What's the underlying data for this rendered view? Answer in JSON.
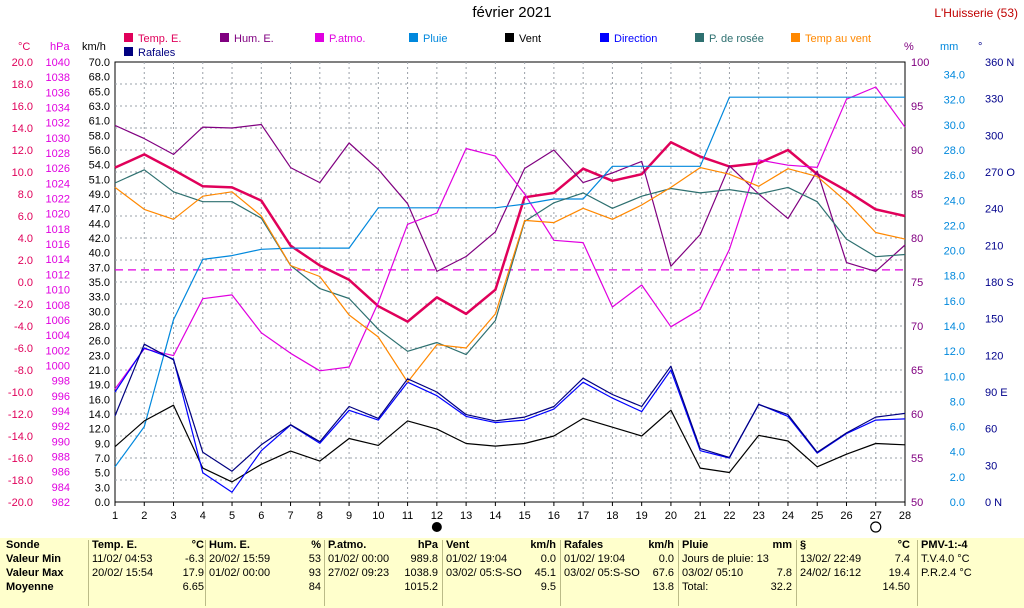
{
  "header": {
    "title": "février 2021",
    "station": "L'Huisserie (53)"
  },
  "legend": [
    {
      "label": "Temp. E.",
      "color": "#e0005a"
    },
    {
      "label": "Hum. E.",
      "color": "#800080"
    },
    {
      "label": "P.atmo.",
      "color": "#e000e0"
    },
    {
      "label": "Pluie",
      "color": "#0088dd"
    },
    {
      "label": "Vent",
      "color": "#000000"
    },
    {
      "label": "Direction",
      "color": "#0000ff"
    },
    {
      "label": "P. de rosée",
      "color": "#2e7070"
    },
    {
      "label": "Temp au vent",
      "color": "#ff8800"
    },
    {
      "label": "Rafales",
      "color": "#000080"
    }
  ],
  "axis_units": {
    "temp": "°C",
    "pressure": "hPa",
    "wind": "km/h",
    "humidity": "%",
    "rain": "mm",
    "direction": "°"
  },
  "chart_data": {
    "type": "line",
    "title": "février 2021",
    "x": [
      1,
      2,
      3,
      4,
      5,
      6,
      7,
      8,
      9,
      10,
      11,
      12,
      13,
      14,
      15,
      16,
      17,
      18,
      19,
      20,
      21,
      22,
      23,
      24,
      25,
      26,
      27,
      28
    ],
    "xlim": [
      1,
      28
    ],
    "axes": {
      "temp": {
        "range": [
          -20,
          20
        ],
        "ticks": [
          "20.0",
          "18.0",
          "16.0",
          "14.0",
          "12.0",
          "10.0",
          "8.0",
          "6.0",
          "4.0",
          "2.0",
          "0.0",
          "-2.0",
          "-4.0",
          "-6.0",
          "-8.0",
          "-10.0",
          "-12.0",
          "-14.0",
          "-16.0",
          "-18.0",
          "-20.0"
        ]
      },
      "pressure": {
        "range": [
          982,
          1040
        ],
        "ticks": [
          "1040",
          "1038",
          "1036",
          "1034",
          "1032",
          "1030",
          "1028",
          "1026",
          "1024",
          "1022",
          "1020",
          "1018",
          "1016",
          "1014",
          "1012",
          "1010",
          "1008",
          "1006",
          "1004",
          "1002",
          "1000",
          "998",
          "996",
          "994",
          "992",
          "990",
          "988",
          "986",
          "984",
          "982"
        ]
      },
      "wind": {
        "range": [
          0,
          70
        ],
        "ticks": [
          "70.0",
          "68.0",
          "65.0",
          "63.0",
          "61.0",
          "58.0",
          "56.0",
          "54.0",
          "51.0",
          "49.0",
          "47.0",
          "44.0",
          "42.0",
          "40.0",
          "37.0",
          "35.0",
          "33.0",
          "30.0",
          "28.0",
          "26.0",
          "23.0",
          "21.0",
          "19.0",
          "16.0",
          "14.0",
          "12.0",
          "9.0",
          "7.0",
          "5.0",
          "3.0",
          "0.0"
        ]
      },
      "humidity": {
        "range": [
          50,
          100
        ],
        "ticks": [
          "100",
          "95",
          "90",
          "85",
          "80",
          "75",
          "70",
          "65",
          "60",
          "55",
          "50"
        ]
      },
      "rain": {
        "range": [
          0,
          35
        ],
        "ticks": [
          "34.0",
          "32.0",
          "30.0",
          "28.0",
          "26.0",
          "24.0",
          "22.0",
          "20.0",
          "18.0",
          "16.0",
          "14.0",
          "12.0",
          "10.0",
          "8.0",
          "6.0",
          "4.0",
          "2.0",
          "0.0"
        ]
      },
      "direction": {
        "range": [
          0,
          360
        ],
        "ticks": [
          "360 N",
          "330",
          "300",
          "270 O",
          "240",
          "210",
          "180 S",
          "150",
          "120",
          "90 E",
          "60",
          "30",
          "0 N"
        ]
      }
    },
    "reference_line": {
      "axis": "temp",
      "value": 1.1
    },
    "series": [
      {
        "name": "Temp. E.",
        "axis": "temp",
        "color": "#e0005a",
        "width": 2.5,
        "values": [
          10.4,
          11.6,
          10.2,
          8.7,
          8.6,
          7.4,
          3.3,
          1.5,
          0.2,
          -2.2,
          -3.6,
          -1.4,
          -2.9,
          -0.7,
          7.7,
          8.1,
          10.3,
          9.2,
          9.8,
          12.7,
          11.4,
          10.5,
          10.8,
          12.0,
          9.8,
          8.3,
          6.6,
          6.0
        ]
      },
      {
        "name": "Hum. E.",
        "axis": "humidity",
        "color": "#800080",
        "width": 1.2,
        "values": [
          92.8,
          91.3,
          89.5,
          92.6,
          92.5,
          92.9,
          88.0,
          86.3,
          90.8,
          87.8,
          83.9,
          76.2,
          77.9,
          80.7,
          87.9,
          90.0,
          86.3,
          87.4,
          88.7,
          76.8,
          80.4,
          88.2,
          85.0,
          82.2,
          87.6,
          77.2,
          76.2,
          79.2
        ]
      },
      {
        "name": "P.atmo.",
        "axis": "pressure",
        "color": "#e000e0",
        "width": 1.2,
        "values": [
          996.9,
          1002.2,
          1001.3,
          1008.8,
          1009.3,
          1004.3,
          1001.6,
          999.3,
          999.8,
          1008.3,
          1018.6,
          1020.1,
          1028.6,
          1027.6,
          1022.6,
          1016.5,
          1016.2,
          1007.7,
          1010.6,
          1005.1,
          1007.4,
          1015.3,
          1027.1,
          1026.4,
          1026.1,
          1035.1,
          1036.7,
          1031.4
        ]
      },
      {
        "name": "Pluie",
        "axis": "rain",
        "color": "#0088dd",
        "width": 1.2,
        "values": [
          2.8,
          6.0,
          14.5,
          19.3,
          19.6,
          20.1,
          20.2,
          20.2,
          20.2,
          23.4,
          23.4,
          23.4,
          23.4,
          23.4,
          23.7,
          24.1,
          24.1,
          26.7,
          26.7,
          26.7,
          26.7,
          32.2,
          32.2,
          32.2,
          32.2,
          32.2,
          32.2,
          32.2
        ]
      },
      {
        "name": "Vent",
        "axis": "wind",
        "color": "#000000",
        "width": 1.2,
        "values": [
          8.8,
          12.9,
          15.4,
          5.4,
          3.2,
          6.0,
          8.1,
          6.5,
          10.1,
          9.0,
          12.9,
          11.6,
          9.3,
          8.9,
          9.3,
          10.5,
          13.3,
          11.9,
          10.5,
          14.6,
          5.4,
          4.7,
          10.6,
          9.7,
          5.6,
          7.6,
          9.3,
          9.1
        ]
      },
      {
        "name": "Direction",
        "axis": "direction",
        "color": "#0000ff",
        "width": 1.2,
        "values": [
          90,
          126,
          117,
          24,
          8,
          42,
          63,
          48,
          75,
          67,
          98,
          87,
          70,
          65,
          67,
          76,
          98,
          85,
          74,
          108,
          42,
          36,
          80,
          70,
          40,
          56,
          67,
          68
        ]
      },
      {
        "name": "P. de rosée",
        "axis": "temp",
        "color": "#2e7070",
        "width": 1.2,
        "values": [
          9.0,
          10.2,
          8.2,
          7.3,
          7.3,
          5.8,
          1.5,
          -0.6,
          -1.5,
          -4.3,
          -6.3,
          -5.5,
          -6.6,
          -3.5,
          5.5,
          7.2,
          8.1,
          6.7,
          7.8,
          8.5,
          8.1,
          8.4,
          8.0,
          8.6,
          7.3,
          3.9,
          2.3,
          2.5
        ]
      },
      {
        "name": "Temp au vent",
        "axis": "temp",
        "color": "#ff8800",
        "width": 1.2,
        "values": [
          8.6,
          6.6,
          5.7,
          7.8,
          8.2,
          6.0,
          1.5,
          0.5,
          -3.0,
          -5.0,
          -9.1,
          -5.7,
          -6.0,
          -2.9,
          5.6,
          5.4,
          6.7,
          5.7,
          7.0,
          8.6,
          10.4,
          9.8,
          8.7,
          10.3,
          9.6,
          7.3,
          4.5,
          3.9
        ]
      },
      {
        "name": "Rafales",
        "axis": "wind",
        "color": "#000080",
        "width": 1.2,
        "values": [
          13.7,
          25.1,
          22.6,
          7.9,
          4.9,
          9.1,
          12.3,
          9.6,
          15.2,
          13.3,
          19.6,
          17.5,
          13.9,
          12.9,
          13.5,
          15.2,
          19.7,
          17.1,
          15.2,
          21.6,
          8.5,
          7.1,
          15.5,
          13.9,
          7.9,
          11.0,
          13.5,
          14.1
        ]
      }
    ],
    "x_markers": [
      {
        "x": 12,
        "type": "new-moon"
      },
      {
        "x": 27,
        "type": "full-moon"
      }
    ]
  },
  "summary": {
    "row_labels": {
      "title": "Sonde",
      "min": "Valeur Min",
      "max": "Valeur Max",
      "avg": "Moyenne"
    },
    "columns": [
      {
        "name": "Temp. E.",
        "unit": "°C",
        "rows": [
          [
            "11/02/ 04:53",
            "-6.3"
          ],
          [
            "20/02/ 15:54",
            "17.9"
          ],
          [
            "",
            "6.65"
          ]
        ]
      },
      {
        "name": "Hum. E.",
        "unit": "%",
        "rows": [
          [
            "20/02/ 15:59",
            "53"
          ],
          [
            "01/02/ 00:00",
            "93"
          ],
          [
            "",
            "84"
          ]
        ]
      },
      {
        "name": "P.atmo.",
        "unit": "hPa",
        "rows": [
          [
            "01/02/ 00:00",
            "989.8"
          ],
          [
            "27/02/ 09:23",
            "1038.9"
          ],
          [
            "",
            "1015.2"
          ]
        ]
      },
      {
        "name": "Vent",
        "unit": "km/h",
        "rows": [
          [
            "01/02/ 19:04",
            "0.0"
          ],
          [
            "03/02/ 05:S-SO",
            "45.1"
          ],
          [
            "",
            "9.5"
          ]
        ]
      },
      {
        "name": "Rafales",
        "unit": "km/h",
        "rows": [
          [
            "01/02/ 19:04",
            "0.0"
          ],
          [
            "03/02/ 05:S-SO",
            "67.6"
          ],
          [
            "",
            "13.8"
          ]
        ]
      },
      {
        "name": "Pluie",
        "unit": "mm",
        "rows": [
          [
            "Jours de pluie: 13",
            ""
          ],
          [
            "03/02/ 05:10",
            "7.8"
          ],
          [
            "Total:",
            "32.2"
          ]
        ]
      },
      {
        "name": "§",
        "unit": "°C",
        "rows": [
          [
            "13/02/ 22:49",
            "7.4"
          ],
          [
            "24/02/ 16:12",
            "19.4"
          ],
          [
            "",
            "14.50"
          ]
        ]
      }
    ],
    "pmv": {
      "title": "PMV-1:-4",
      "line1": "T.V.4.0 °C",
      "line2": "P.R.2.4 °C"
    }
  }
}
